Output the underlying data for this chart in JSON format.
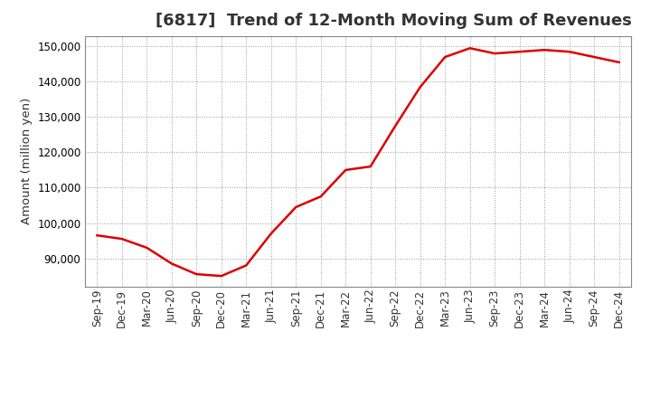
{
  "title": "[6817]  Trend of 12-Month Moving Sum of Revenues",
  "ylabel": "Amount (million yen)",
  "line_color": "#dd0000",
  "background_color": "#ffffff",
  "grid_color": "#999999",
  "ylim": [
    82000,
    153000
  ],
  "yticks": [
    90000,
    100000,
    110000,
    120000,
    130000,
    140000,
    150000
  ],
  "x_labels": [
    "Sep-19",
    "Dec-19",
    "Mar-20",
    "Jun-20",
    "Sep-20",
    "Dec-20",
    "Mar-21",
    "Jun-21",
    "Sep-21",
    "Dec-21",
    "Mar-22",
    "Jun-22",
    "Sep-22",
    "Dec-22",
    "Mar-23",
    "Jun-23",
    "Sep-23",
    "Dec-23",
    "Mar-24",
    "Jun-24",
    "Sep-24",
    "Dec-24"
  ],
  "y_values": [
    96500,
    95500,
    93000,
    88500,
    85500,
    85000,
    88000,
    97000,
    104500,
    107500,
    115000,
    116000,
    127500,
    138500,
    147000,
    149500,
    148000,
    148500,
    149000,
    148500,
    147000,
    145500
  ],
  "title_fontsize": 13,
  "tick_fontsize": 8.5,
  "ylabel_fontsize": 9.5
}
